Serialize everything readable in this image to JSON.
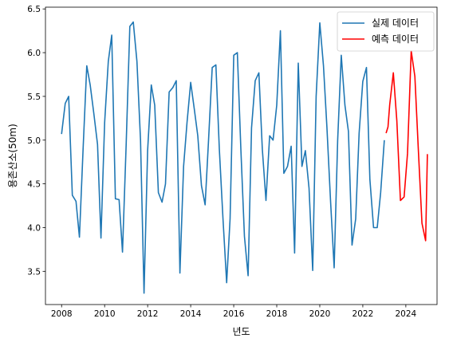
{
  "chart_data": {
    "type": "line",
    "xlabel": "년도",
    "ylabel": "용존산소(50m)",
    "xlim": [
      2007.25,
      2025.45
    ],
    "ylim": [
      3.12,
      6.52
    ],
    "x_ticks": [
      2008,
      2010,
      2012,
      2014,
      2016,
      2018,
      2020,
      2022,
      2024
    ],
    "y_ticks": [
      3.5,
      4.0,
      4.5,
      5.0,
      5.5,
      6.0,
      6.5
    ],
    "legend_position": "top-right",
    "grid": false,
    "series": [
      {
        "name": "실제 데이터",
        "color": "#1f77b4",
        "x": [
          2008.0,
          2008.17,
          2008.33,
          2008.5,
          2008.67,
          2008.83,
          2009.0,
          2009.17,
          2009.33,
          2009.5,
          2009.67,
          2009.83,
          2010.0,
          2010.17,
          2010.33,
          2010.5,
          2010.67,
          2010.83,
          2011.0,
          2011.17,
          2011.33,
          2011.5,
          2011.67,
          2011.83,
          2012.0,
          2012.17,
          2012.33,
          2012.5,
          2012.67,
          2012.83,
          2013.0,
          2013.17,
          2013.33,
          2013.5,
          2013.67,
          2013.83,
          2014.0,
          2014.17,
          2014.33,
          2014.5,
          2014.67,
          2014.83,
          2015.0,
          2015.17,
          2015.33,
          2015.5,
          2015.67,
          2015.83,
          2016.0,
          2016.17,
          2016.33,
          2016.5,
          2016.67,
          2016.83,
          2017.0,
          2017.17,
          2017.33,
          2017.5,
          2017.67,
          2017.83,
          2018.0,
          2018.17,
          2018.33,
          2018.5,
          2018.67,
          2018.83,
          2019.0,
          2019.17,
          2019.33,
          2019.5,
          2019.67,
          2019.83,
          2020.0,
          2020.17,
          2020.33,
          2020.5,
          2020.67,
          2020.83,
          2021.0,
          2021.17,
          2021.33,
          2021.5,
          2021.67,
          2021.83,
          2022.0,
          2022.17,
          2022.33,
          2022.5,
          2022.67,
          2022.83,
          2023.0
        ],
        "y": [
          5.07,
          5.42,
          5.5,
          4.37,
          4.3,
          3.89,
          4.9,
          5.85,
          5.63,
          5.3,
          4.95,
          3.88,
          5.2,
          5.9,
          6.2,
          4.33,
          4.32,
          3.72,
          4.95,
          6.3,
          6.35,
          5.9,
          5.0,
          3.25,
          4.88,
          5.63,
          5.4,
          4.4,
          4.29,
          4.5,
          5.55,
          5.6,
          5.68,
          3.48,
          4.7,
          5.2,
          5.66,
          5.35,
          5.05,
          4.48,
          4.26,
          5.0,
          5.83,
          5.86,
          4.9,
          4.1,
          3.37,
          4.1,
          5.97,
          6.0,
          4.9,
          3.9,
          3.45,
          5.14,
          5.68,
          5.77,
          4.9,
          4.31,
          5.05,
          5.0,
          5.4,
          6.25,
          4.62,
          4.7,
          4.93,
          3.71,
          5.88,
          4.7,
          4.88,
          4.45,
          3.51,
          5.5,
          6.34,
          5.85,
          5.15,
          4.3,
          3.54,
          5.0,
          5.97,
          5.4,
          5.1,
          3.8,
          4.1,
          5.08,
          5.67,
          5.83,
          4.55,
          4.0,
          4.0,
          4.4,
          5.0
        ]
      },
      {
        "name": "예측 데이터",
        "color": "#ff0000",
        "x": [
          2023.08,
          2023.17,
          2023.25,
          2023.42,
          2023.58,
          2023.75,
          2023.92,
          2024.08,
          2024.25,
          2024.42,
          2024.58,
          2024.75,
          2024.92,
          2025.0
        ],
        "y": [
          5.08,
          5.15,
          5.4,
          5.77,
          5.22,
          4.31,
          4.35,
          4.85,
          6.02,
          5.73,
          4.9,
          4.05,
          3.85,
          4.84
        ]
      }
    ]
  }
}
